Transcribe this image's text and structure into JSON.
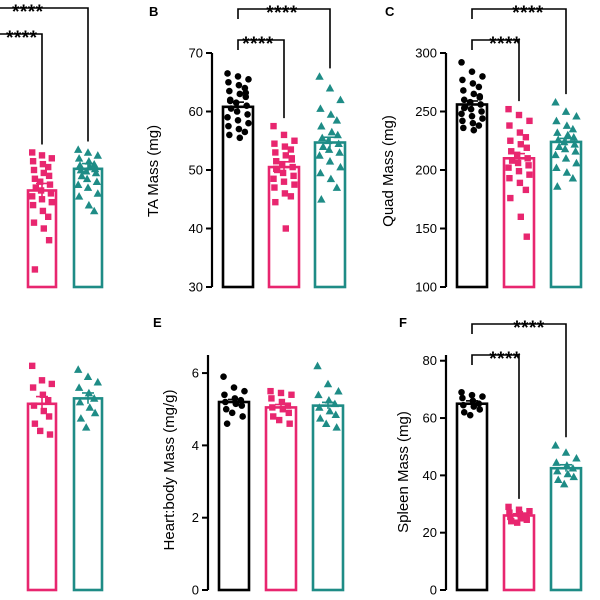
{
  "colors": {
    "ctrl": "#000000",
    "g2": "#e8266f",
    "g3": "#1e8c86"
  },
  "chart_data": [
    {
      "id": "A",
      "type": "bar",
      "letter": "",
      "ylabel": "",
      "ylim": [
        null,
        null
      ],
      "yticks": [],
      "bars": [
        {
          "group": "ctrl",
          "marker": "circle",
          "mean": null,
          "sem": null,
          "points": []
        },
        {
          "group": "g2",
          "marker": "square",
          "mean": 46.5,
          "sem": 1.2,
          "points": [
            53,
            52.5,
            52,
            51.5,
            51,
            50.5,
            50,
            49.5,
            49,
            48.5,
            48,
            47.5,
            47,
            46.5,
            46,
            45.5,
            45,
            44.5,
            44,
            43,
            42,
            41,
            40,
            38,
            33
          ]
        },
        {
          "group": "g3",
          "marker": "triangle",
          "mean": 50.2,
          "sem": 0.9,
          "points": [
            53.5,
            53,
            52.5,
            52,
            51.5,
            51,
            50.8,
            50.5,
            50.2,
            50,
            49.8,
            49.5,
            49,
            48.5,
            48,
            47.5,
            47,
            46,
            45.5,
            44,
            43
          ]
        }
      ],
      "sig": [
        {
          "label": "****"
        },
        {
          "label": "****"
        }
      ]
    },
    {
      "id": "B",
      "type": "bar",
      "letter": "B",
      "ylabel": "TA Mass (mg)",
      "ylim": [
        30,
        70
      ],
      "yticks": [
        30,
        40,
        50,
        60,
        70
      ],
      "bars": [
        {
          "group": "ctrl",
          "marker": "circle",
          "mean": 60.8,
          "sem": 0.8,
          "points": [
            66.5,
            66,
            65.5,
            65,
            64.5,
            64,
            63.5,
            63,
            62.5,
            62,
            61.5,
            61,
            60.5,
            60,
            59.5,
            59,
            58.5,
            58,
            57.5,
            57,
            56.5,
            56,
            55.5,
            63.2,
            61.8
          ]
        },
        {
          "group": "g2",
          "marker": "square",
          "mean": 50.5,
          "sem": 0.9,
          "points": [
            57.5,
            56,
            55,
            54.5,
            54,
            53.5,
            53,
            52.5,
            52,
            51.5,
            51,
            50.5,
            50,
            49.5,
            49,
            48.5,
            48,
            47.5,
            47,
            46,
            45.5,
            44.5,
            40,
            51.8,
            50.2
          ]
        },
        {
          "group": "g3",
          "marker": "triangle",
          "mean": 54.7,
          "sem": 0.9,
          "points": [
            66,
            64,
            62,
            60.5,
            59.5,
            58.5,
            57.5,
            56.5,
            56,
            55.5,
            55,
            54.5,
            54,
            53.5,
            53,
            52.5,
            51.5,
            50.5,
            49.5,
            48.5,
            47,
            45
          ]
        }
      ],
      "sig": [
        {
          "label": "****"
        },
        {
          "label": "****"
        }
      ]
    },
    {
      "id": "C",
      "type": "bar",
      "letter": "C",
      "ylabel": "Quad Mass (mg)",
      "ylim": [
        100,
        300
      ],
      "yticks": [
        100,
        150,
        200,
        250,
        300
      ],
      "bars": [
        {
          "group": "ctrl",
          "marker": "circle",
          "mean": 256,
          "sem": 3,
          "points": [
            292,
            284,
            280,
            277,
            274,
            271,
            268,
            265,
            262,
            260,
            258,
            256,
            254,
            252,
            250,
            248,
            246,
            244,
            242,
            240,
            238,
            236,
            234,
            263,
            253
          ]
        },
        {
          "group": "g2",
          "marker": "square",
          "mean": 210,
          "sem": 4,
          "points": [
            252,
            247,
            242,
            238,
            232,
            228,
            225,
            222,
            219,
            216,
            213,
            210,
            208,
            206,
            204,
            202,
            199,
            196,
            193,
            189,
            183,
            176,
            160,
            143
          ]
        },
        {
          "group": "g3",
          "marker": "triangle",
          "mean": 224,
          "sem": 3,
          "points": [
            258,
            250,
            246,
            242,
            238,
            235,
            232,
            230,
            228,
            226,
            224,
            222,
            220,
            218,
            216,
            213,
            210,
            206,
            202,
            198,
            193,
            186
          ]
        }
      ],
      "sig": [
        {
          "label": "****"
        },
        {
          "label": "****"
        }
      ]
    },
    {
      "id": "D",
      "type": "bar",
      "letter": "",
      "ylabel": "",
      "ylim": [
        null,
        null
      ],
      "yticks": [],
      "bars": [
        {
          "group": "ctrl",
          "marker": "circle",
          "mean": null,
          "sem": null,
          "points": []
        },
        {
          "group": "g2",
          "marker": "square",
          "mean": 5.15,
          "sem": 0.2,
          "points": [
            6.2,
            5.8,
            5.7,
            5.6,
            5.4,
            5.25,
            5.1,
            4.95,
            4.8,
            4.6,
            4.4,
            4.3
          ]
        },
        {
          "group": "g3",
          "marker": "triangle",
          "mean": 5.3,
          "sem": 0.15,
          "points": [
            6.1,
            5.9,
            5.75,
            5.6,
            5.45,
            5.3,
            5.2,
            5.05,
            4.9,
            4.75,
            4.5
          ]
        }
      ],
      "sig": []
    },
    {
      "id": "E",
      "type": "bar",
      "letter": "E",
      "ylabel": "Heart:body Mass (mg/g)",
      "ylim": [
        0,
        6.5
      ],
      "yticks": [
        0,
        2,
        4,
        6
      ],
      "bars": [
        {
          "group": "ctrl",
          "marker": "circle",
          "mean": 5.2,
          "sem": 0.07,
          "points": [
            5.9,
            5.6,
            5.5,
            5.4,
            5.3,
            5.25,
            5.2,
            5.15,
            5.1,
            5.0,
            4.9,
            4.8,
            4.6
          ]
        },
        {
          "group": "g2",
          "marker": "square",
          "mean": 5.05,
          "sem": 0.08,
          "points": [
            5.5,
            5.45,
            5.4,
            5.3,
            5.2,
            5.1,
            5.05,
            5.0,
            4.9,
            4.8,
            4.7,
            4.6
          ]
        },
        {
          "group": "g3",
          "marker": "triangle",
          "mean": 5.1,
          "sem": 0.09,
          "points": [
            6.2,
            5.7,
            5.5,
            5.4,
            5.25,
            5.15,
            5.05,
            4.95,
            4.85,
            4.75,
            4.6,
            4.5
          ]
        }
      ],
      "sig": []
    },
    {
      "id": "F",
      "type": "bar",
      "letter": "F",
      "ylabel": "Spleen Mass (mg)",
      "ylim": [
        0,
        82
      ],
      "yticks": [
        0,
        20,
        40,
        60,
        80
      ],
      "bars": [
        {
          "group": "ctrl",
          "marker": "circle",
          "mean": 65,
          "sem": 1,
          "points": [
            69,
            68,
            67.5,
            67,
            66,
            65,
            64.5,
            64,
            63,
            62,
            61
          ]
        },
        {
          "group": "g2",
          "marker": "square",
          "mean": 26,
          "sem": 0.6,
          "points": [
            29,
            28,
            27.5,
            27,
            26.5,
            26,
            25.5,
            25,
            24.5,
            24,
            23.5
          ]
        },
        {
          "group": "g3",
          "marker": "triangle",
          "mean": 42.5,
          "sem": 1.2,
          "points": [
            50.5,
            48,
            46,
            44.5,
            43.5,
            42.5,
            41.5,
            40.5,
            39.5,
            38.5,
            37
          ]
        }
      ],
      "sig": [
        {
          "label": "****"
        },
        {
          "label": "****"
        }
      ]
    }
  ]
}
